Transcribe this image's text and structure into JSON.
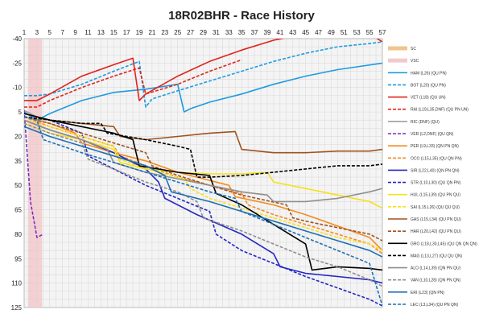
{
  "chart_data": {
    "type": "line",
    "title": "18R02BHR - Race History",
    "xlabel": "",
    "ylabel": "",
    "x_tick_labels": [
      "1",
      "3",
      "5",
      "7",
      "9",
      "11",
      "13",
      "15",
      "17",
      "19",
      "21",
      "23",
      "25",
      "27",
      "29",
      "31",
      "33",
      "35",
      "37",
      "39",
      "41",
      "43",
      "45",
      "47",
      "49",
      "51",
      "53",
      "55",
      "57"
    ],
    "xlim": [
      1,
      57
    ],
    "y_tick_labels": [
      "-40",
      "-25",
      "-10",
      "5",
      "20",
      "35",
      "50",
      "65",
      "80",
      "95",
      "110",
      "125"
    ],
    "ylim": [
      -40,
      125
    ],
    "y_inverted": true,
    "grid": true,
    "legend_placement": "right",
    "shaded_laps": [
      [
        1.6,
        3.8
      ]
    ],
    "series": [
      {
        "name": "SC",
        "color": "#f2c48f",
        "dash": "solid",
        "x": [],
        "y": []
      },
      {
        "name": "VSC",
        "color": "#f4c9cc",
        "dash": "solid",
        "x": [],
        "y": []
      },
      {
        "name": "HAM (L26) (QU PN)",
        "color": "#1e9be0",
        "dash": "solid",
        "x": [
          1,
          3,
          5,
          10,
          15,
          20,
          25,
          26,
          27,
          30,
          35,
          40,
          45,
          50,
          57
        ],
        "y": [
          5,
          10,
          6,
          -2,
          -7,
          -9,
          -12,
          5,
          3,
          -1,
          -6,
          -12,
          -17,
          -21,
          -25
        ]
      },
      {
        "name": "BOT (L20) (QU PN)",
        "color": "#1e9be0",
        "dash": "dash",
        "x": [
          1,
          3,
          5,
          10,
          15,
          19,
          20,
          21,
          25,
          30,
          35,
          40,
          45,
          50,
          55,
          57
        ],
        "y": [
          -5,
          -5,
          -6,
          -12,
          -20,
          -26,
          2,
          -3,
          -8,
          -14,
          -20,
          -26,
          -31,
          -35,
          -37,
          -38
        ]
      },
      {
        "name": "VET (L18) (QU UN)",
        "color": "#e0231d",
        "dash": "solid",
        "x": [
          1,
          3,
          5,
          10,
          15,
          18,
          19,
          20,
          25,
          30,
          35,
          40,
          45,
          50,
          55,
          57
        ],
        "y": [
          -2,
          -2,
          -6,
          -17,
          -24,
          -28,
          -2,
          -6,
          -17,
          -26,
          -33,
          -39,
          -43,
          -45,
          -43,
          -38
        ]
      },
      {
        "name": "RAI (L19,L35,DNF) (QU PN UN)",
        "color": "#e0231d",
        "dash": "dash",
        "x": [
          1,
          3,
          5,
          10,
          15,
          19,
          20,
          25,
          30,
          35
        ],
        "y": [
          2,
          2,
          -2,
          -10,
          -17,
          -22,
          -6,
          -12,
          -20,
          -27
        ]
      },
      {
        "name": "RIC (DNF) (QU)",
        "color": "#a0a0a0",
        "dash": "solid",
        "x": [
          1,
          2,
          3,
          4
        ],
        "y": [
          4,
          6,
          8,
          10
        ]
      },
      {
        "name": "VER (L2,DNF) (QU QN)",
        "color": "#7b2fbf",
        "dash": "dash",
        "x": [
          1,
          2,
          3,
          4
        ],
        "y": [
          4,
          60,
          82,
          80
        ]
      },
      {
        "name": "PER (L9,L33) (QN PN QN)",
        "color": "#f58a1f",
        "dash": "solid",
        "x": [
          1,
          5,
          9,
          10,
          15,
          20,
          25,
          33,
          34,
          40,
          45,
          50,
          55,
          57
        ],
        "y": [
          8,
          12,
          18,
          24,
          30,
          35,
          42,
          50,
          57,
          62,
          68,
          75,
          82,
          90
        ]
      },
      {
        "name": "OCO (L15,L35) (QU QN PN)",
        "color": "#f58a1f",
        "dash": "dash",
        "x": [
          1,
          5,
          10,
          15,
          16,
          20,
          25,
          35,
          36,
          40,
          45,
          50,
          55,
          57
        ],
        "y": [
          8,
          14,
          20,
          26,
          32,
          38,
          45,
          55,
          62,
          68,
          74,
          80,
          86,
          92
        ]
      },
      {
        "name": "SIR (L22,L40) (QN PN QN)",
        "color": "#2426c4",
        "dash": "solid",
        "x": [
          1,
          5,
          10,
          15,
          20,
          22,
          23,
          28,
          35,
          40,
          41,
          45,
          50,
          55,
          57
        ],
        "y": [
          10,
          16,
          22,
          30,
          40,
          48,
          58,
          68,
          80,
          92,
          100,
          104,
          106,
          108,
          110
        ]
      },
      {
        "name": "STR (L10,L30) (QU QN PN)",
        "color": "#2426c4",
        "dash": "dash",
        "x": [
          1,
          5,
          10,
          11,
          15,
          20,
          25,
          30,
          31,
          35,
          40,
          45,
          50,
          55,
          57
        ],
        "y": [
          6,
          10,
          18,
          32,
          40,
          50,
          58,
          66,
          80,
          90,
          98,
          106,
          113,
          120,
          124
        ]
      },
      {
        "name": "HUL (L15,L39) (QU PN QU)",
        "color": "#f7e017",
        "dash": "solid",
        "x": [
          1,
          5,
          10,
          15,
          16,
          20,
          25,
          30,
          35,
          39,
          40,
          45,
          50,
          55,
          57
        ],
        "y": [
          12,
          18,
          22,
          28,
          36,
          40,
          42,
          43,
          43,
          42,
          48,
          52,
          56,
          60,
          64
        ]
      },
      {
        "name": "SAI (L15,L26) (QU QU QU)",
        "color": "#f7e017",
        "dash": "dash",
        "x": [
          1,
          5,
          10,
          15,
          16,
          20,
          26,
          27,
          30,
          35,
          40,
          45,
          50,
          55,
          57
        ],
        "y": [
          10,
          14,
          20,
          26,
          34,
          40,
          46,
          52,
          58,
          64,
          70,
          76,
          82,
          86,
          90
        ]
      },
      {
        "name": "GAS (L15,L34) (QU PN QU)",
        "color": "#a0521d",
        "dash": "solid",
        "x": [
          1,
          5,
          10,
          15,
          16,
          20,
          25,
          30,
          34,
          35,
          40,
          45,
          50,
          55,
          57
        ],
        "y": [
          6,
          10,
          12,
          14,
          20,
          22,
          20,
          18,
          17,
          28,
          30,
          30,
          29,
          29,
          28
        ]
      },
      {
        "name": "HAR (L20,L42) (QU PN QU)",
        "color": "#a0521d",
        "dash": "dash",
        "x": [
          1,
          5,
          10,
          15,
          20,
          21,
          25,
          30,
          35,
          42,
          43,
          45,
          50,
          55,
          57
        ],
        "y": [
          8,
          12,
          18,
          24,
          30,
          38,
          44,
          50,
          56,
          62,
          70,
          72,
          76,
          80,
          84
        ]
      },
      {
        "name": "GRO (L18,L30,L45) (QU QN QN QN)",
        "color": "#000000",
        "dash": "solid",
        "x": [
          1,
          5,
          10,
          15,
          18,
          19,
          25,
          30,
          31,
          35,
          40,
          45,
          46,
          50,
          55,
          57
        ],
        "y": [
          6,
          10,
          14,
          18,
          22,
          38,
          42,
          44,
          55,
          62,
          74,
          86,
          102,
          100,
          101,
          102
        ]
      },
      {
        "name": "MAG (L13,L27) (QU QU QN)",
        "color": "#000000",
        "dash": "dash",
        "x": [
          1,
          5,
          10,
          13,
          14,
          20,
          25,
          27,
          28,
          30,
          35,
          40,
          45,
          50,
          55,
          57
        ],
        "y": [
          8,
          10,
          12,
          12,
          18,
          22,
          26,
          28,
          45,
          45,
          44,
          42,
          40,
          38,
          38,
          37
        ]
      },
      {
        "name": "ALO (L14,L39) (QN PN QU)",
        "color": "#8f8f8f",
        "dash": "solid",
        "x": [
          1,
          5,
          10,
          14,
          15,
          20,
          25,
          30,
          35,
          39,
          40,
          45,
          50,
          55,
          57
        ],
        "y": [
          10,
          16,
          22,
          28,
          36,
          42,
          46,
          50,
          54,
          56,
          60,
          60,
          58,
          54,
          52
        ]
      },
      {
        "name": "VAN (L10,L28) (QN PN QN)",
        "color": "#8f8f8f",
        "dash": "dash",
        "x": [
          1,
          5,
          10,
          11,
          15,
          20,
          25,
          28,
          29,
          35,
          40,
          45,
          50,
          55,
          57
        ],
        "y": [
          12,
          18,
          24,
          34,
          40,
          48,
          54,
          60,
          70,
          78,
          86,
          94,
          100,
          108,
          112
        ]
      },
      {
        "name": "ERI (L23) (QN PN)",
        "color": "#1f6fb4",
        "dash": "solid",
        "x": [
          1,
          5,
          10,
          15,
          20,
          23,
          24,
          30,
          35,
          40,
          45,
          50,
          55,
          57
        ],
        "y": [
          14,
          20,
          26,
          32,
          38,
          44,
          54,
          60,
          66,
          72,
          78,
          84,
          90,
          94
        ]
      },
      {
        "name": "LEC (L3,L34) (QU PN QN)",
        "color": "#1f6fb4",
        "dash": "dash",
        "x": [
          1,
          3,
          4,
          10,
          15,
          20,
          25,
          30,
          34,
          35,
          40,
          45,
          50,
          55,
          57
        ],
        "y": [
          8,
          10,
          22,
          30,
          36,
          42,
          48,
          54,
          58,
          66,
          74,
          82,
          90,
          98,
          124
        ]
      }
    ]
  }
}
